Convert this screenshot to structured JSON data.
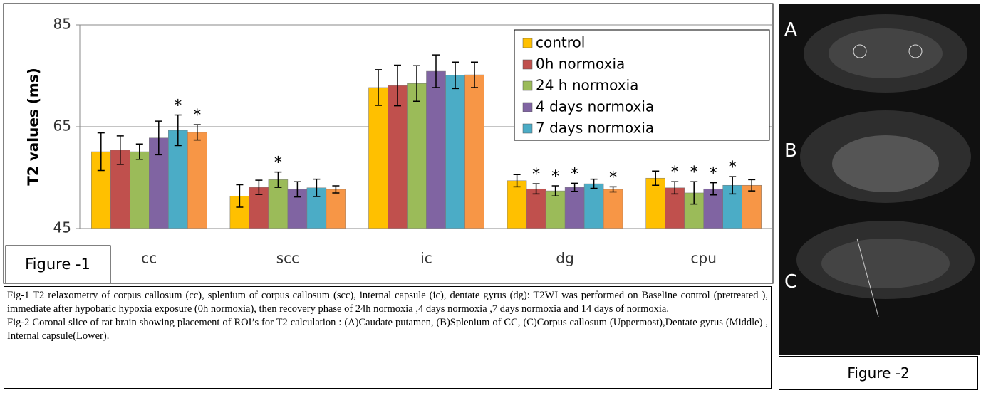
{
  "chart_data": {
    "type": "bar",
    "ylabel": "T2 values (ms)",
    "categories": [
      "cc",
      "scc",
      "ic",
      "dg",
      "cpu"
    ],
    "ylim": [
      45,
      85
    ],
    "yticks": [
      45,
      65,
      85
    ],
    "grid": true,
    "series": [
      {
        "name": "control",
        "color": "#ffc000",
        "values": [
          60.1,
          51.4,
          72.7,
          54.4,
          54.9
        ],
        "errors": [
          3.7,
          2.2,
          3.5,
          1.2,
          1.4
        ],
        "significance": [
          null,
          null,
          null,
          null,
          null
        ]
      },
      {
        "name": "0h normoxia",
        "color": "#c0504d",
        "values": [
          60.4,
          53.1,
          73.1,
          52.8,
          53.0
        ],
        "errors": [
          2.8,
          1.4,
          4.0,
          1.0,
          1.2
        ],
        "significance": [
          null,
          null,
          null,
          "*",
          "*"
        ]
      },
      {
        "name": "24 h normoxia",
        "color": "#9bbb59",
        "values": [
          60.1,
          54.6,
          73.5,
          52.4,
          52.0
        ],
        "errors": [
          1.5,
          1.5,
          3.5,
          1.0,
          2.2
        ],
        "significance": [
          null,
          "*",
          null,
          "*",
          "*"
        ]
      },
      {
        "name": "4 days normoxia",
        "color": "#8064a2",
        "values": [
          62.8,
          52.7,
          75.9,
          53.1,
          52.8
        ],
        "errors": [
          3.3,
          1.5,
          3.2,
          0.8,
          1.2
        ],
        "significance": [
          null,
          null,
          null,
          "*",
          "*"
        ]
      },
      {
        "name": "7 days normoxia",
        "color": "#4bacc6",
        "values": [
          64.3,
          53.0,
          75.1,
          53.8,
          53.5
        ],
        "errors": [
          3.0,
          1.7,
          2.6,
          0.9,
          1.7
        ],
        "significance": [
          "*",
          null,
          null,
          null,
          "*"
        ]
      },
      {
        "color": "#f79646",
        "values": [
          63.9,
          52.7,
          75.2,
          52.7,
          53.5
        ],
        "errors": [
          1.5,
          0.7,
          2.5,
          0.5,
          1.1
        ],
        "significance": [
          "*",
          null,
          null,
          "*",
          null
        ]
      }
    ]
  },
  "figure1_label": "Figure -1",
  "figure2_label": "Figure -2",
  "panels": [
    "A",
    "B",
    "C"
  ],
  "caption": [
    "Fig-1  T2 relaxometry of corpus callosum (cc), splenium of corpus callosum (scc), internal capsule (ic), dentate gyrus (dg): T2WI was performed on Baseline control (pretreated ), immediate after hypobaric hypoxia exposure (0h normoxia), then recovery phase of 24h normoxia ,4 days normoxia ,7 days normoxia and 14 days of normoxia.",
    "Fig-2 Coronal slice of rat  brain showing placement of ROI’s for T2 calculation : (A)Caudate putamen, (B)Splenium of CC, (C)Corpus callosum (Uppermost),Dentate gyrus (Middle) , Internal capsule(Lower)."
  ]
}
